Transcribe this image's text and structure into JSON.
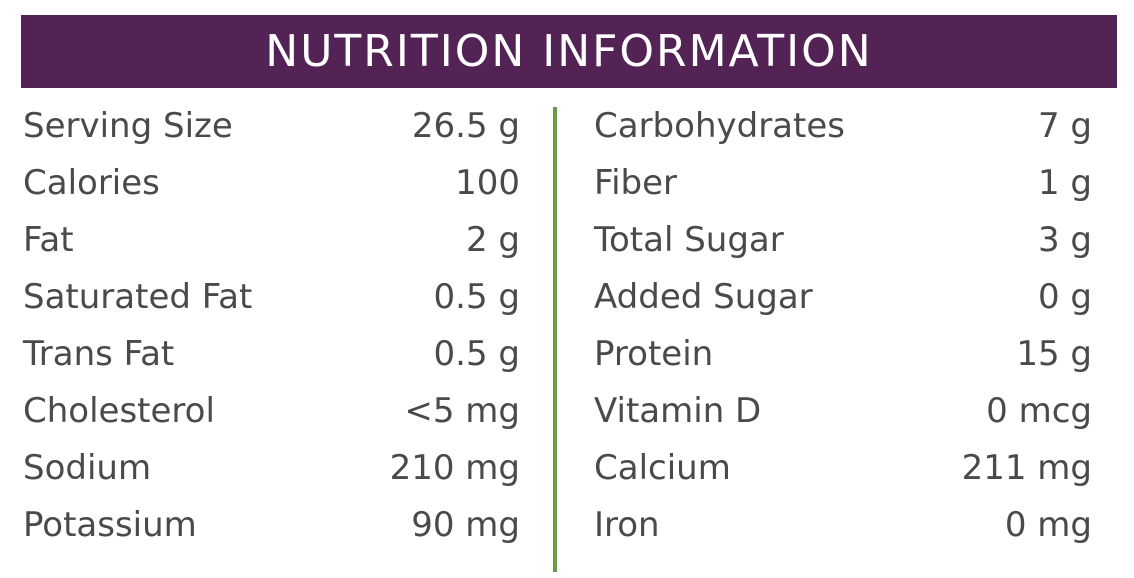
{
  "header": {
    "title": "NUTRITION INFORMATION"
  },
  "left": [
    [
      "Serving Size",
      "26.5 g"
    ],
    [
      "Calories",
      "100"
    ],
    [
      "Fat",
      "2 g"
    ],
    [
      "Saturated Fat",
      "0.5 g"
    ],
    [
      "Trans Fat",
      "0.5 g"
    ],
    [
      "Cholesterol",
      "<5 mg"
    ],
    [
      "Sodium",
      "210 mg"
    ],
    [
      "Potassium",
      "90 mg"
    ]
  ],
  "right": [
    [
      "Carbohydrates",
      "7 g"
    ],
    [
      "Fiber",
      "1 g"
    ],
    [
      "Total Sugar",
      "3 g"
    ],
    [
      "Added Sugar",
      "0 g"
    ],
    [
      "Protein",
      "15 g"
    ],
    [
      "Vitamin D",
      "0 mcg"
    ],
    [
      "Calcium",
      "211 mg"
    ],
    [
      "Iron",
      "0 mg"
    ]
  ]
}
